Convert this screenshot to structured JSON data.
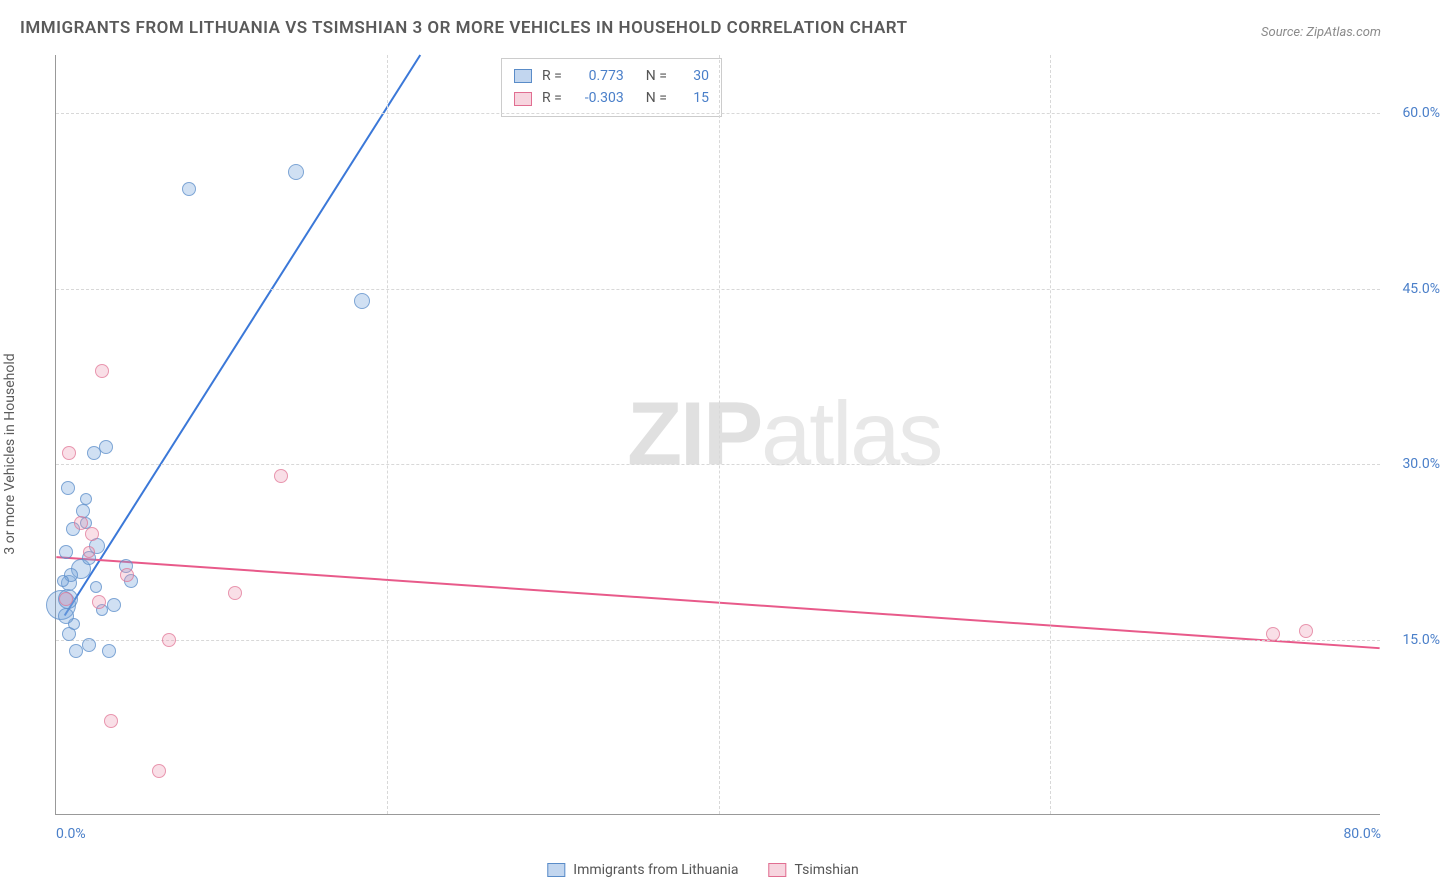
{
  "title": "IMMIGRANTS FROM LITHUANIA VS TSIMSHIAN 3 OR MORE VEHICLES IN HOUSEHOLD CORRELATION CHART",
  "source": "Source: ZipAtlas.com",
  "y_axis_label": "3 or more Vehicles in Household",
  "watermark_bold": "ZIP",
  "watermark_light": "atlas",
  "chart": {
    "type": "scatter",
    "xlim": [
      0,
      80
    ],
    "ylim": [
      0,
      65
    ],
    "x_ticks": [
      {
        "value": 0,
        "label": "0.0%"
      },
      {
        "value": 80,
        "label": "80.0%"
      }
    ],
    "y_ticks": [
      {
        "value": 15,
        "label": "15.0%"
      },
      {
        "value": 30,
        "label": "30.0%"
      },
      {
        "value": 45,
        "label": "45.0%"
      },
      {
        "value": 60,
        "label": "60.0%"
      }
    ],
    "grid_color": "#d8d8d8",
    "background_color": "#ffffff",
    "axis_color": "#999999",
    "tick_label_color": "#4a7fc9",
    "marker_base_size": 16,
    "series": [
      {
        "name": "Immigrants from Lithuania",
        "color_fill": "rgba(120,165,220,0.35)",
        "color_stroke": "#5a8cc8",
        "trend_color": "#3b78d8",
        "correlation_r": "0.773",
        "correlation_n": "30",
        "trend_line": {
          "x1": 0.5,
          "y1": 17,
          "x2": 22,
          "y2": 65
        },
        "points": [
          {
            "x": 0.3,
            "y": 18,
            "size": 30
          },
          {
            "x": 0.7,
            "y": 18.5,
            "size": 20
          },
          {
            "x": 0.8,
            "y": 19.8,
            "size": 16
          },
          {
            "x": 1.5,
            "y": 21,
            "size": 20
          },
          {
            "x": 2.0,
            "y": 22,
            "size": 14
          },
          {
            "x": 2.5,
            "y": 23,
            "size": 16
          },
          {
            "x": 0.8,
            "y": 15.5,
            "size": 14
          },
          {
            "x": 1.2,
            "y": 14,
            "size": 14
          },
          {
            "x": 2.0,
            "y": 14.5,
            "size": 14
          },
          {
            "x": 3.2,
            "y": 14,
            "size": 14
          },
          {
            "x": 1.0,
            "y": 24.5,
            "size": 14
          },
          {
            "x": 1.6,
            "y": 26,
            "size": 14
          },
          {
            "x": 0.7,
            "y": 28,
            "size": 14
          },
          {
            "x": 2.3,
            "y": 31,
            "size": 14
          },
          {
            "x": 3.0,
            "y": 31.5,
            "size": 14
          },
          {
            "x": 0.9,
            "y": 20.5,
            "size": 14
          },
          {
            "x": 3.5,
            "y": 18,
            "size": 14
          },
          {
            "x": 4.2,
            "y": 21.3,
            "size": 14
          },
          {
            "x": 4.5,
            "y": 20,
            "size": 14
          },
          {
            "x": 8.0,
            "y": 53.5,
            "size": 14
          },
          {
            "x": 14.5,
            "y": 55,
            "size": 16
          },
          {
            "x": 18.5,
            "y": 44,
            "size": 16
          },
          {
            "x": 1.8,
            "y": 27,
            "size": 12
          },
          {
            "x": 1.8,
            "y": 25,
            "size": 12
          },
          {
            "x": 2.4,
            "y": 19.5,
            "size": 12
          },
          {
            "x": 0.6,
            "y": 22.5,
            "size": 14
          },
          {
            "x": 0.4,
            "y": 20,
            "size": 12
          },
          {
            "x": 2.8,
            "y": 17.5,
            "size": 12
          },
          {
            "x": 1.1,
            "y": 16.3,
            "size": 12
          },
          {
            "x": 0.6,
            "y": 17,
            "size": 16
          }
        ]
      },
      {
        "name": "Tsimshian",
        "color_fill": "rgba(235,150,175,0.3)",
        "color_stroke": "#e16e91",
        "trend_color": "#e85a8a",
        "correlation_r": "-0.303",
        "correlation_n": "15",
        "trend_line": {
          "x1": 0,
          "y1": 22,
          "x2": 80,
          "y2": 14.2
        },
        "points": [
          {
            "x": 0.8,
            "y": 31,
            "size": 14
          },
          {
            "x": 2.8,
            "y": 38,
            "size": 14
          },
          {
            "x": 1.5,
            "y": 25,
            "size": 14
          },
          {
            "x": 2.2,
            "y": 24,
            "size": 14
          },
          {
            "x": 4.3,
            "y": 20.5,
            "size": 14
          },
          {
            "x": 0.6,
            "y": 18.5,
            "size": 14
          },
          {
            "x": 2.6,
            "y": 18.2,
            "size": 14
          },
          {
            "x": 6.8,
            "y": 15,
            "size": 14
          },
          {
            "x": 3.3,
            "y": 8,
            "size": 14
          },
          {
            "x": 6.2,
            "y": 3.8,
            "size": 14
          },
          {
            "x": 10.8,
            "y": 19,
            "size": 14
          },
          {
            "x": 13.6,
            "y": 29,
            "size": 14
          },
          {
            "x": 73.5,
            "y": 15.5,
            "size": 14
          },
          {
            "x": 75.5,
            "y": 15.7,
            "size": 14
          },
          {
            "x": 2.0,
            "y": 22.5,
            "size": 12
          }
        ]
      }
    ]
  },
  "legend_box": {
    "rows": [
      {
        "swatch": "blue",
        "r_label": "R =",
        "r_value": "0.773",
        "n_label": "N =",
        "n_value": "30"
      },
      {
        "swatch": "pink",
        "r_label": "R =",
        "r_value": "-0.303",
        "n_label": "N =",
        "n_value": "15"
      }
    ]
  },
  "bottom_legend": [
    {
      "swatch": "blue",
      "label": "Immigrants from Lithuania"
    },
    {
      "swatch": "pink",
      "label": "Tsimshian"
    }
  ]
}
